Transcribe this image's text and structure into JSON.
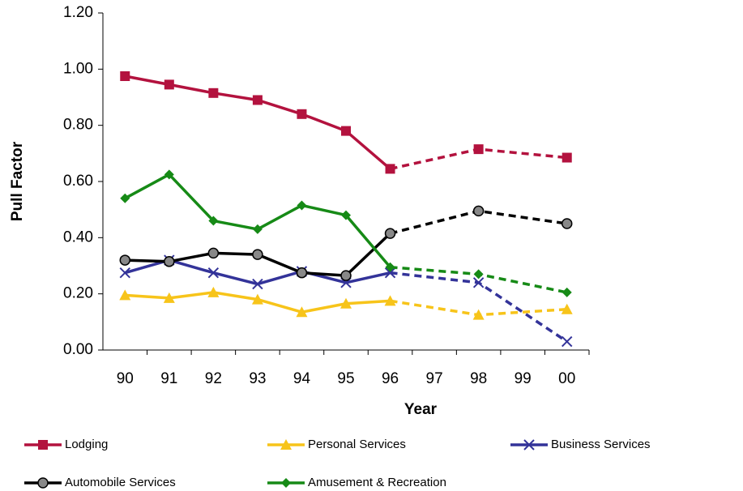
{
  "chart_data": {
    "type": "line",
    "xlabel": "Year",
    "ylabel": "Pull Factor",
    "categories": [
      "90",
      "91",
      "92",
      "93",
      "94",
      "95",
      "96",
      "97",
      "98",
      "99",
      "00"
    ],
    "connect_gaps": true,
    "dashed_from_index": 6,
    "ylim": [
      0,
      1.2
    ],
    "yticks": [
      {
        "value": 0,
        "label": "0.00"
      },
      {
        "value": 0.2,
        "label": "0.20"
      },
      {
        "value": 0.4,
        "label": "0.40"
      },
      {
        "value": 0.6,
        "label": "0.60"
      },
      {
        "value": 0.8,
        "label": "0.80"
      },
      {
        "value": 1.0,
        "label": "1.00"
      },
      {
        "value": 1.2,
        "label": "1.20"
      }
    ],
    "legend": "bottom",
    "series": [
      {
        "name": "Lodging",
        "color": "#b3123e",
        "marker": "square",
        "values": [
          0.975,
          0.945,
          0.915,
          0.89,
          0.84,
          0.78,
          0.645,
          null,
          0.715,
          null,
          0.685
        ]
      },
      {
        "name": "Personal Services",
        "color": "#f7c41a",
        "marker": "triangle",
        "values": [
          0.195,
          0.185,
          0.205,
          0.18,
          0.135,
          0.165,
          0.175,
          null,
          0.125,
          null,
          0.145
        ]
      },
      {
        "name": "Business Services",
        "color": "#333399",
        "marker": "x",
        "values": [
          0.275,
          0.32,
          0.275,
          0.235,
          0.28,
          0.24,
          0.275,
          null,
          0.24,
          null,
          0.03
        ]
      },
      {
        "name": "Automobile Services",
        "color": "#000000",
        "marker": "circle",
        "values": [
          0.32,
          0.315,
          0.345,
          0.34,
          0.275,
          0.265,
          0.415,
          null,
          0.495,
          null,
          0.45
        ]
      },
      {
        "name": "Amusement & Recreation",
        "color": "#168a16",
        "marker": "diamond",
        "values": [
          0.54,
          0.625,
          0.46,
          0.43,
          0.515,
          0.48,
          0.295,
          null,
          0.27,
          null,
          0.205
        ]
      }
    ]
  }
}
